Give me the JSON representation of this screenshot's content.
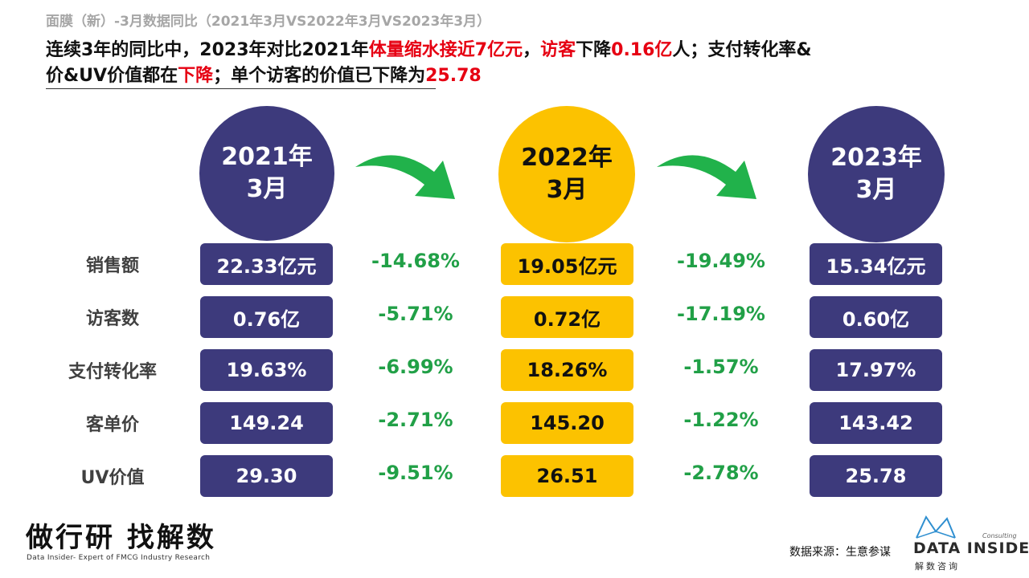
{
  "subtitle": "面膜（新）-3月数据同比（2021年3月VS2022年3月VS2023年3月）",
  "headline": {
    "line1": [
      {
        "text": "连续3年的同比中，2023年对比2021年",
        "red": false
      },
      {
        "text": "体量缩水接近7亿元",
        "red": true
      },
      {
        "text": "，",
        "red": false
      },
      {
        "text": "访客",
        "red": true
      },
      {
        "text": "下降",
        "red": false
      },
      {
        "text": "0.16亿",
        "red": true
      },
      {
        "text": "人；支付转化率&",
        "red": false
      }
    ],
    "line2": [
      {
        "text": "价&UV价值都在",
        "red": false
      },
      {
        "text": "下降",
        "red": true
      },
      {
        "text": "；单个访客的价值已下降为",
        "red": false
      },
      {
        "text": "25.78",
        "red": true
      }
    ]
  },
  "periods": [
    {
      "year": "2021年",
      "month": "3月",
      "style": "purple"
    },
    {
      "year": "2022年",
      "month": "3月",
      "style": "yellow"
    },
    {
      "year": "2023年",
      "month": "3月",
      "style": "purple"
    }
  ],
  "metrics": [
    {
      "label": "销售额",
      "values": [
        "22.33亿元",
        "19.05亿元",
        "15.34亿元"
      ],
      "changes": [
        "-14.68%",
        "-19.49%"
      ]
    },
    {
      "label": "访客数",
      "values": [
        "0.76亿",
        "0.72亿",
        "0.60亿"
      ],
      "changes": [
        "-5.71%",
        "-17.19%"
      ]
    },
    {
      "label": "支付转化率",
      "values": [
        "19.63%",
        "18.26%",
        "17.97%"
      ],
      "changes": [
        "-6.99%",
        "-1.57%"
      ]
    },
    {
      "label": "客单价",
      "values": [
        "149.24",
        "145.20",
        "143.42"
      ],
      "changes": [
        "-2.71%",
        "-1.22%"
      ]
    },
    {
      "label": "UV价值",
      "values": [
        "29.30",
        "26.51",
        "25.78"
      ],
      "changes": [
        "-9.51%",
        "-2.78%"
      ]
    }
  ],
  "footer": {
    "slogan": "做行研 找解数",
    "slogan_sub": "Data Insider- Expert of FMCG Industry Research",
    "source": "数据来源：生意参谋",
    "logo_consulting": "Consulting",
    "logo_name": "DATA INSIDER",
    "logo_cn": "解数咨询"
  },
  "colors": {
    "purple": "#3d3a7c",
    "yellow": "#fcc200",
    "green": "#21a047",
    "red": "#e60012"
  }
}
